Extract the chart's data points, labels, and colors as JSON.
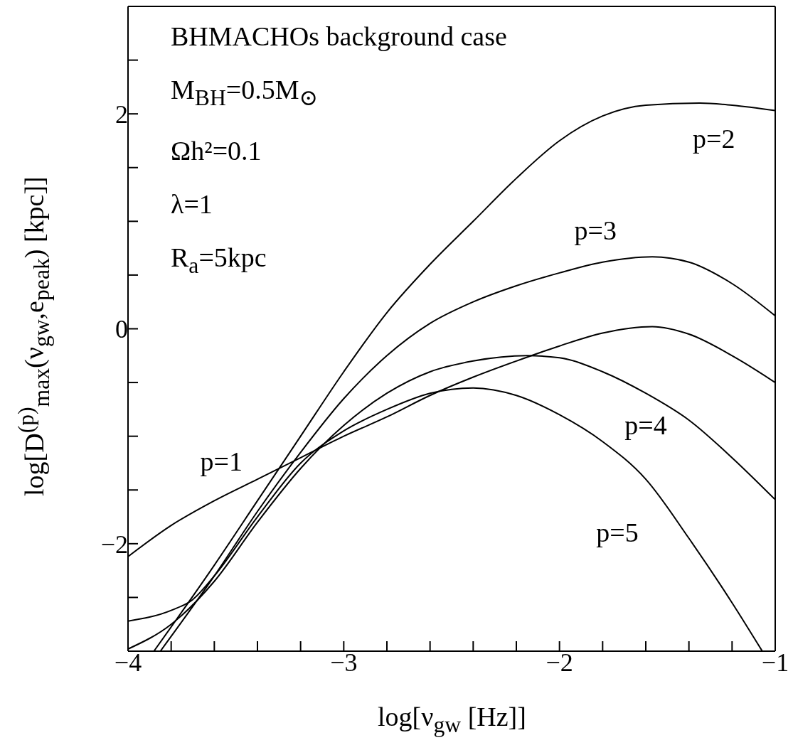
{
  "chart_data": {
    "type": "line",
    "xlabel": "log[ν$_{gw}$ [Hz]]",
    "ylabel": "log[D$^{(p)}$$_{max}$(ν$_{gw}$,e$_{peak}$) [kpc]]",
    "xlim": [
      -4,
      -1
    ],
    "ylim": [
      -3,
      3
    ],
    "xticks": [
      -4,
      {
        "value": -3.8,
        "label": null
      },
      {
        "value": -3.6,
        "label": null
      },
      {
        "value": -3.4,
        "label": null
      },
      {
        "value": -3.2,
        "label": null
      },
      -3,
      {
        "value": -2.8,
        "label": null
      },
      {
        "value": -2.6,
        "label": null
      },
      {
        "value": -2.4,
        "label": null
      },
      {
        "value": -2.2,
        "label": null
      },
      -2,
      {
        "value": -1.8,
        "label": null
      },
      {
        "value": -1.6,
        "label": null
      },
      {
        "value": -1.4,
        "label": null
      },
      {
        "value": -1.2,
        "label": null
      },
      -1
    ],
    "yticks": [
      {
        "value": -2.5,
        "label": null
      },
      -2,
      {
        "value": -1.5,
        "label": null
      },
      {
        "value": -1,
        "label": null
      },
      {
        "value": -0.5,
        "label": null
      },
      0,
      {
        "value": 0.5,
        "label": null
      },
      {
        "value": 1,
        "label": null
      },
      {
        "value": 1.5,
        "label": null
      },
      2,
      {
        "value": 2.5,
        "label": null
      }
    ],
    "grid": false,
    "legend": false,
    "marker": "none",
    "line_style": "solid",
    "series": [
      {
        "name": "p=1",
        "color": "#000000",
        "x": [
          -4,
          -3.8,
          -3.6,
          -3.4,
          -3.2,
          -3,
          -2.8,
          -2.6,
          -2.4,
          -2.2,
          -2,
          -1.8,
          -1.57,
          -1.4,
          -1.2,
          -1
        ],
        "values": [
          -2.12,
          -1.83,
          -1.6,
          -1.4,
          -1.2,
          -1,
          -0.82,
          -0.62,
          -0.45,
          -0.3,
          -0.16,
          -0.04,
          0.02,
          -0.05,
          -0.25,
          -0.5
        ]
      },
      {
        "name": "p=2",
        "color": "#000000",
        "x": [
          -3.88,
          -3.6,
          -3.4,
          -3.2,
          -3,
          -2.8,
          -2.6,
          -2.4,
          -2.2,
          -2,
          -1.8,
          -1.6,
          -1.35,
          -1.2,
          -1
        ],
        "values": [
          -3,
          -2.2,
          -1.6,
          -1,
          -0.4,
          0.15,
          0.6,
          1,
          1.4,
          1.75,
          1.98,
          2.08,
          2.1,
          2.08,
          2.03
        ]
      },
      {
        "name": "p=3",
        "color": "#000000",
        "x": [
          -3.85,
          -3.6,
          -3.4,
          -3.2,
          -3,
          -2.8,
          -2.6,
          -2.4,
          -2.2,
          -2,
          -1.8,
          -1.57,
          -1.4,
          -1.2,
          -1
        ],
        "values": [
          -3,
          -2.3,
          -1.7,
          -1.15,
          -0.65,
          -0.25,
          0.05,
          0.25,
          0.4,
          0.52,
          0.62,
          0.67,
          0.62,
          0.42,
          0.12
        ]
      },
      {
        "name": "p=4",
        "color": "#000000",
        "x": [
          -4,
          -3.8,
          -3.6,
          -3.4,
          -3.2,
          -3,
          -2.8,
          -2.6,
          -2.4,
          -2.15,
          -2,
          -1.8,
          -1.6,
          -1.4,
          -1.2,
          -1
        ],
        "values": [
          -2.98,
          -2.75,
          -2.35,
          -1.8,
          -1.3,
          -0.9,
          -0.6,
          -0.4,
          -0.3,
          -0.25,
          -0.27,
          -0.4,
          -0.6,
          -0.85,
          -1.2,
          -1.59
        ]
      },
      {
        "name": "p=5",
        "color": "#000000",
        "x": [
          -4,
          -3.8,
          -3.7,
          -3.6,
          -3.4,
          -3.2,
          -3,
          -2.8,
          -2.6,
          -2.4,
          -2.2,
          -2,
          -1.8,
          -1.6,
          -1.4,
          -1.2,
          -1.06
        ],
        "values": [
          -2.72,
          -2.62,
          -2.52,
          -2.3,
          -1.75,
          -1.25,
          -0.95,
          -0.75,
          -0.6,
          -0.55,
          -0.62,
          -0.8,
          -1.05,
          -1.4,
          -1.95,
          -2.55,
          -3
        ]
      }
    ],
    "annotations": [
      "BHMACHOs background case",
      "M$_{BH}$=0.5M$_{⊙}$",
      "Ωh²=0.1",
      "λ=1",
      "R$_{a}$=5kpc"
    ]
  }
}
